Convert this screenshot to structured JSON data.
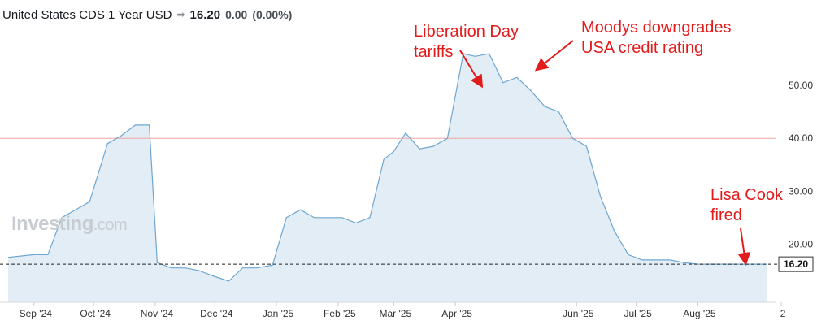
{
  "header": {
    "instrument": "United States CDS 1 Year USD",
    "arrow_icon": "right-arrow-icon",
    "price": "16.20",
    "change": "0.00",
    "change_pct": "(0.00%)"
  },
  "watermark": {
    "brand": "Investing",
    "suffix": ".com"
  },
  "annotations": [
    {
      "id": "liberation",
      "lines": [
        "Liberation Day",
        "tariffs"
      ]
    },
    {
      "id": "moodys",
      "lines": [
        "Moodys downgrades",
        "USA credit rating"
      ]
    },
    {
      "id": "lisa",
      "lines": [
        "Lisa Cook",
        "fired"
      ]
    }
  ],
  "colors": {
    "line": "#6ea6d0",
    "fill": "#e3edf5",
    "reference_line": "#f2a3a3",
    "annotation": "#e41b1b",
    "axis_text": "#333333",
    "current_label_bg": "#ffffff"
  },
  "chart_data": {
    "type": "area",
    "title": "",
    "x_ticks": [
      "Sep '24",
      "Oct '24",
      "Nov '24",
      "Dec '24",
      "Jan '25",
      "Feb '25",
      "Mar '25",
      "Apr '25",
      "Jun '25",
      "Jul '25",
      "Aug '25",
      "2"
    ],
    "y_ticks": [
      20,
      30,
      40,
      50
    ],
    "y_tick_labels": [
      "20.00",
      "30.00",
      "40.00",
      "50.00"
    ],
    "ylim": [
      9,
      60
    ],
    "reference_line_value": 40,
    "current_value": 16.2,
    "current_value_label": "16.20",
    "grid": false,
    "x": [
      "2024-08-19",
      "2024-09-01",
      "2024-09-08",
      "2024-09-15",
      "2024-09-22",
      "2024-09-29",
      "2024-10-08",
      "2024-10-15",
      "2024-10-22",
      "2024-10-29",
      "2024-11-02",
      "2024-11-09",
      "2024-11-16",
      "2024-11-23",
      "2024-11-30",
      "2024-12-08",
      "2024-12-15",
      "2024-12-22",
      "2024-12-30",
      "2025-01-06",
      "2025-01-13",
      "2025-01-20",
      "2025-01-27",
      "2025-02-03",
      "2025-02-10",
      "2025-02-17",
      "2025-02-24",
      "2025-03-01",
      "2025-03-07",
      "2025-03-14",
      "2025-03-21",
      "2025-03-28",
      "2025-04-05",
      "2025-04-11",
      "2025-04-18",
      "2025-04-25",
      "2025-05-02",
      "2025-05-09",
      "2025-05-16",
      "2025-05-23",
      "2025-05-30",
      "2025-06-06",
      "2025-06-13",
      "2025-06-20",
      "2025-06-27",
      "2025-07-04",
      "2025-07-11",
      "2025-07-18",
      "2025-07-25",
      "2025-08-01",
      "2025-08-08",
      "2025-08-15",
      "2025-08-22",
      "2025-08-29",
      "2025-09-05"
    ],
    "series": [
      {
        "values": [
          17.5,
          18.0,
          18.0,
          25.0,
          26.5,
          28.0,
          39.0,
          40.5,
          42.5,
          42.5,
          16.5,
          15.5,
          15.5,
          15.0,
          14.0,
          13.0,
          15.5,
          15.5,
          16.0,
          25.0,
          26.5,
          25.0,
          25.0,
          25.0,
          24.0,
          25.0,
          36.0,
          37.5,
          41.0,
          38.0,
          38.5,
          40.0,
          56.0,
          55.5,
          56.0,
          50.5,
          51.5,
          49.0,
          46.0,
          45.0,
          40.0,
          38.5,
          29.0,
          22.5,
          18.0,
          17.0,
          17.0,
          17.0,
          16.5,
          16.2,
          16.2,
          16.2,
          16.2,
          16.2,
          16.2
        ]
      }
    ]
  }
}
